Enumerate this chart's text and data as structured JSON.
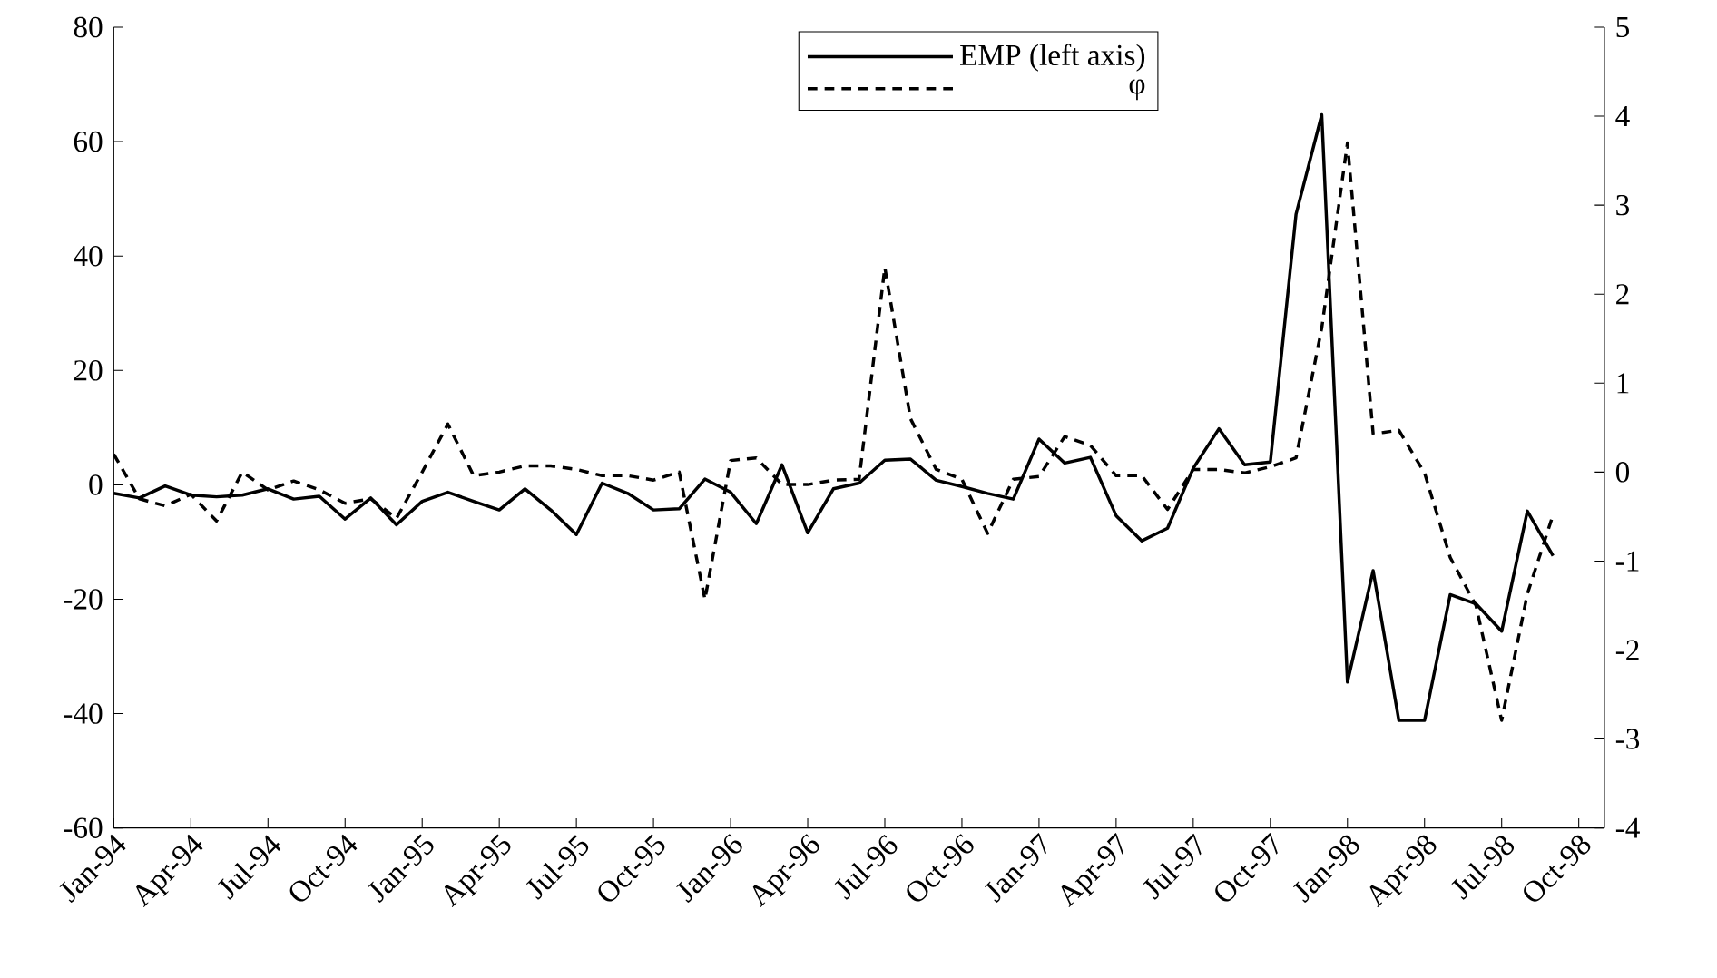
{
  "chart_data": {
    "type": "line",
    "x": [
      "1994-01",
      "1994-02",
      "1994-03",
      "1994-04",
      "1994-05",
      "1994-06",
      "1994-07",
      "1994-08",
      "1994-09",
      "1994-10",
      "1994-11",
      "1994-12",
      "1995-01",
      "1995-02",
      "1995-03",
      "1995-04",
      "1995-05",
      "1995-06",
      "1995-07",
      "1995-08",
      "1995-09",
      "1995-10",
      "1995-11",
      "1995-12",
      "1996-01",
      "1996-02",
      "1996-03",
      "1996-04",
      "1996-05",
      "1996-06",
      "1996-07",
      "1996-08",
      "1996-09",
      "1996-10",
      "1996-11",
      "1996-12",
      "1997-01",
      "1997-02",
      "1997-03",
      "1997-04",
      "1997-05",
      "1997-06",
      "1997-07",
      "1997-08",
      "1997-09",
      "1997-10",
      "1997-11",
      "1997-12",
      "1998-01",
      "1998-02",
      "1998-03",
      "1998-04",
      "1998-05",
      "1998-06",
      "1998-07",
      "1998-08",
      "1998-09"
    ],
    "series": [
      {
        "name": "EMP (left axis)",
        "color": "#000000",
        "line_style": "solid",
        "values": [
          -1.5,
          -2.3,
          -0.2,
          -1.8,
          -2.1,
          -1.8,
          -0.7,
          -2.5,
          -2,
          -6,
          -2.3,
          -7,
          -2.9,
          -1.3,
          -2.9,
          -4.4,
          -0.7,
          -4.4,
          -8.7,
          0.3,
          -1.5,
          -4.4,
          -4.2,
          1,
          -1.3,
          -6.8,
          3.5,
          -8.4,
          -0.7,
          0.3,
          4.3,
          4.5,
          0.8,
          -0.3,
          -1.5,
          -2.5,
          8,
          3.8,
          4.8,
          -5.4,
          -9.8,
          -7.6,
          2.9,
          9.8,
          3.5,
          4,
          47.3,
          64.7,
          -34.5,
          -15,
          -41.2,
          -41.2,
          -19.2,
          -20.8,
          -25.6,
          -4.6,
          -12.4
        ]
      },
      {
        "name": "φ",
        "color": "#000000",
        "line_style": "dashed",
        "axis": "y2",
        "values": [
          0.2,
          -0.3,
          -0.38,
          -0.25,
          -0.55,
          0,
          -0.2,
          -0.1,
          -0.2,
          -0.35,
          -0.3,
          -0.52,
          0,
          0.54,
          -0.04,
          0,
          0.07,
          0.07,
          0.03,
          -0.04,
          -0.04,
          -0.09,
          0,
          -1.43,
          0.13,
          0.16,
          -0.14,
          -0.14,
          -0.09,
          -0.08,
          2.3,
          0.6,
          0.03,
          -0.08,
          -0.69,
          -0.08,
          -0.05,
          0.4,
          0.3,
          -0.04,
          -0.04,
          -0.42,
          0.03,
          0.03,
          -0.01,
          0.06,
          0.16,
          1.62,
          3.7,
          0.43,
          0.47,
          -0.01,
          -0.96,
          -1.5,
          -2.79,
          -1.37,
          -0.48
        ]
      }
    ],
    "xlim": [
      "1994-01",
      "1998-11"
    ],
    "xticks": [
      {
        "value": "1994-01",
        "label": "Jan-94"
      },
      {
        "value": "1994-04",
        "label": "Apr-94"
      },
      {
        "value": "1994-07",
        "label": "Jul-94"
      },
      {
        "value": "1994-10",
        "label": "Oct-94"
      },
      {
        "value": "1995-01",
        "label": "Jan-95"
      },
      {
        "value": "1995-04",
        "label": "Apr-95"
      },
      {
        "value": "1995-07",
        "label": "Jul-95"
      },
      {
        "value": "1995-10",
        "label": "Oct-95"
      },
      {
        "value": "1996-01",
        "label": "Jan-96"
      },
      {
        "value": "1996-04",
        "label": "Apr-96"
      },
      {
        "value": "1996-07",
        "label": "Jul-96"
      },
      {
        "value": "1996-10",
        "label": "Oct-96"
      },
      {
        "value": "1997-01",
        "label": "Jan-97"
      },
      {
        "value": "1997-04",
        "label": "Apr-97"
      },
      {
        "value": "1997-07",
        "label": "Jul-97"
      },
      {
        "value": "1997-10",
        "label": "Oct-97"
      },
      {
        "value": "1998-01",
        "label": "Jan-98"
      },
      {
        "value": "1998-04",
        "label": "Apr-98"
      },
      {
        "value": "1998-07",
        "label": "Jul-98"
      },
      {
        "value": "1998-10",
        "label": "Oct-98"
      }
    ],
    "ylim": [
      -60,
      80
    ],
    "yticks": [
      -60,
      -40,
      -20,
      0,
      20,
      40,
      60,
      80
    ],
    "y2lim": [
      -4,
      5
    ],
    "y2ticks": [
      -4,
      -3,
      -2,
      -1,
      0,
      1,
      2,
      3,
      4,
      5
    ],
    "legend": "top",
    "grid": false
  }
}
